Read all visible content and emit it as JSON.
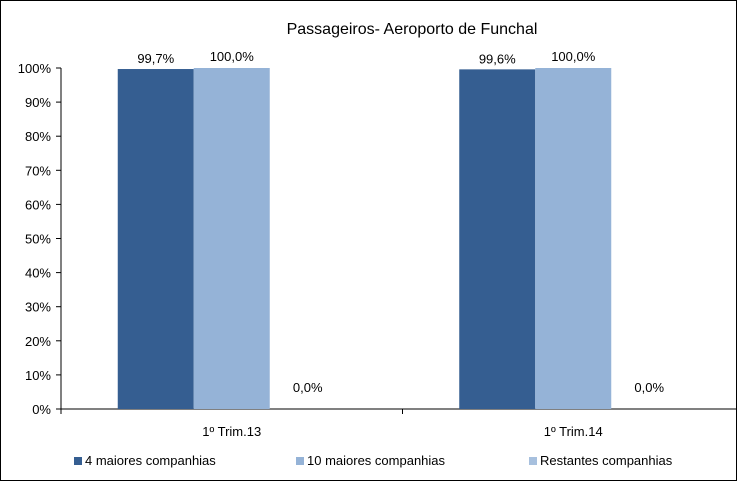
{
  "chart_data": {
    "type": "bar",
    "title": "Passageiros- Aeroporto de Funchal",
    "categories": [
      "1º Trim.13",
      "1º Trim.14"
    ],
    "series": [
      {
        "name": "4 maiores companhias",
        "values": [
          99.7,
          99.6
        ],
        "labels": [
          "99,7%",
          "99,6%"
        ],
        "color": "#355E91"
      },
      {
        "name": "10 maiores companhias",
        "values": [
          100.0,
          100.0
        ],
        "labels": [
          "100,0%",
          "100,0%"
        ],
        "color": "#95B3D7"
      },
      {
        "name": "Restantes companhias",
        "values": [
          0.0,
          0.0
        ],
        "labels": [
          "0,0%",
          "0,0%"
        ],
        "color": "#A7C0DE"
      }
    ],
    "ylim": [
      0,
      100
    ],
    "yticks": [
      "0%",
      "10%",
      "20%",
      "30%",
      "40%",
      "50%",
      "60%",
      "70%",
      "80%",
      "90%",
      "100%"
    ],
    "grid": false,
    "legend_position": "bottom"
  }
}
